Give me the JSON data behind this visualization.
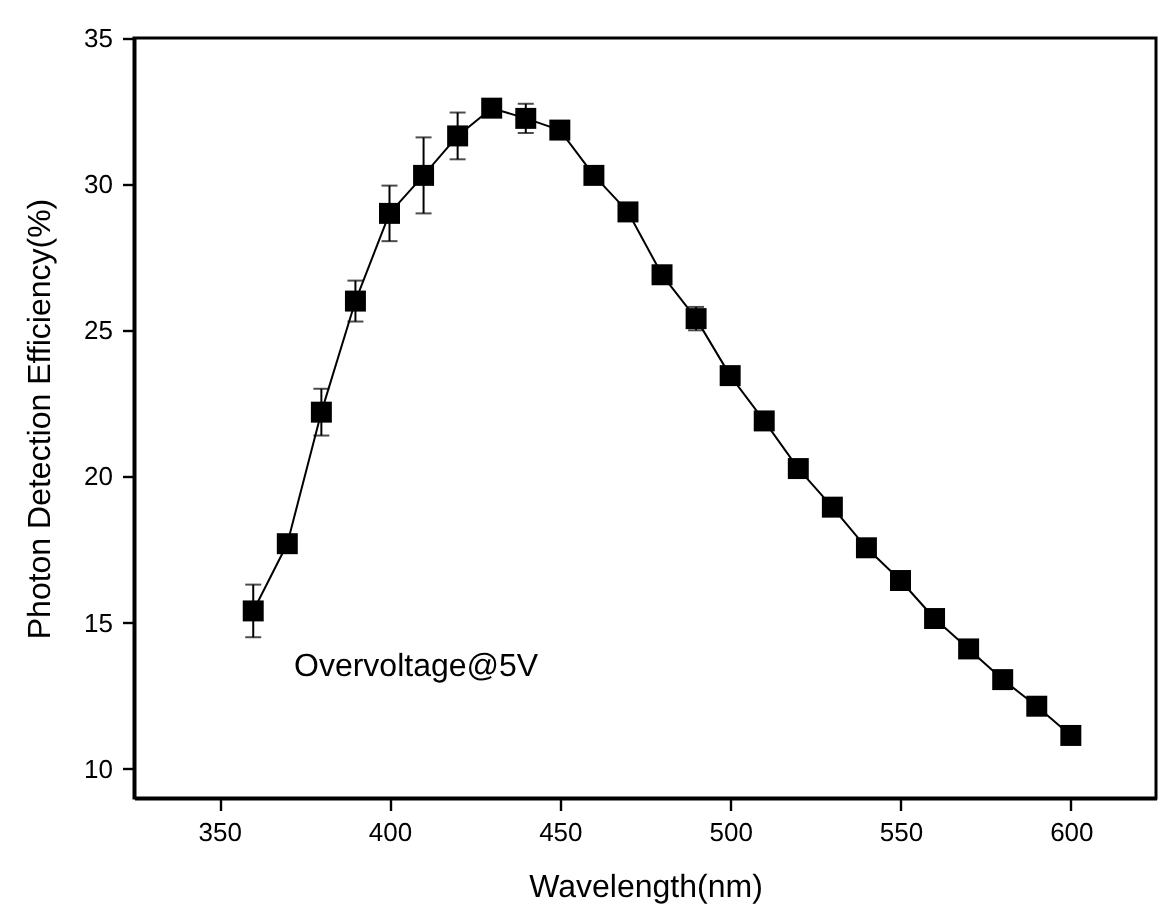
{
  "chart_data": {
    "type": "line",
    "xlabel": "Wavelength(nm)",
    "ylabel": "Photon Detection Efficiency(%)",
    "annotations": [
      "Overvoltage@5V"
    ],
    "x": [
      360,
      370,
      380,
      390,
      400,
      410,
      420,
      430,
      440,
      450,
      460,
      470,
      480,
      490,
      500,
      510,
      520,
      530,
      540,
      550,
      560,
      570,
      580,
      590,
      600
    ],
    "series": [
      {
        "color": "#000000",
        "values": [
          15.4,
          17.7,
          22.2,
          26.0,
          29.0,
          30.3,
          31.65,
          32.6,
          32.25,
          31.85,
          30.3,
          29.05,
          26.9,
          25.4,
          23.45,
          21.9,
          20.27,
          18.95,
          17.56,
          16.44,
          15.14,
          14.1,
          13.05,
          12.14,
          11.14
        ],
        "errors": [
          0.9,
          null,
          0.8,
          0.7,
          0.95,
          1.3,
          0.8,
          null,
          0.5,
          null,
          null,
          null,
          null,
          0.4,
          null,
          null,
          null,
          null,
          null,
          null,
          null,
          null,
          null,
          null,
          null
        ]
      }
    ],
    "xlim": [
      325,
      625
    ],
    "xticks": [
      350,
      400,
      450,
      500,
      550,
      600
    ],
    "ylim": [
      9,
      35
    ],
    "yticks": [
      10,
      15,
      20,
      25,
      30,
      35
    ],
    "grid": false,
    "marker": "square",
    "line_style": "solid"
  }
}
